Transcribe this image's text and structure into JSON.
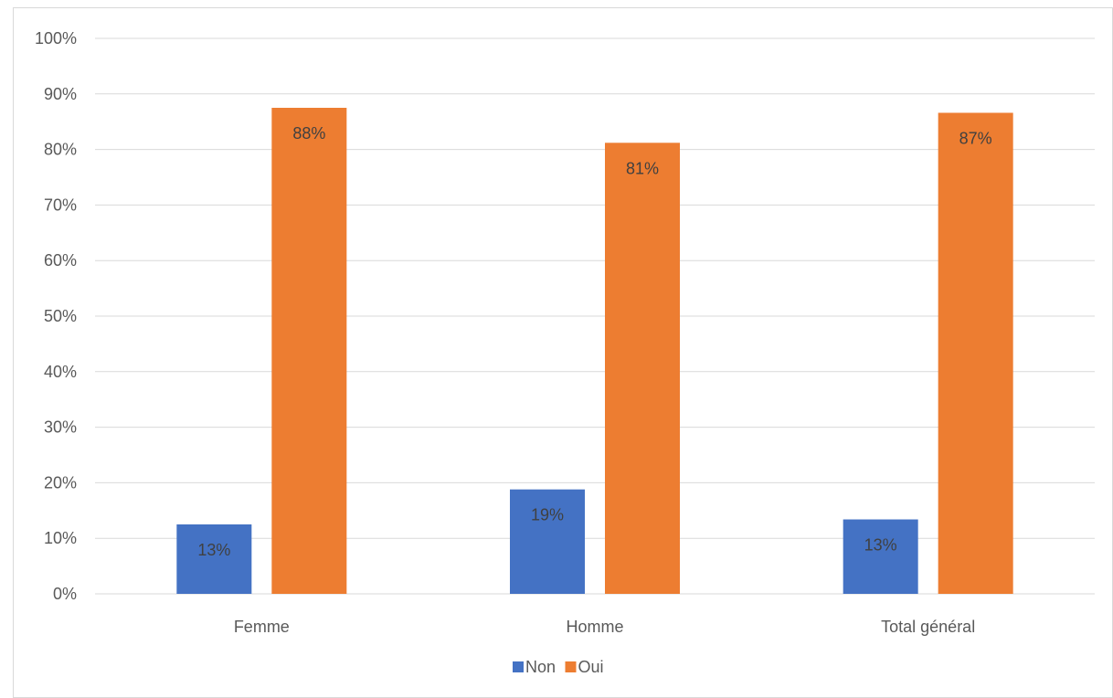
{
  "chart_data": {
    "type": "bar",
    "categories": [
      "Femme",
      "Homme",
      "Total général"
    ],
    "series": [
      {
        "name": "Non",
        "values": [
          12.5,
          18.8,
          13.4
        ],
        "labels": [
          "13%",
          "19%",
          "13%"
        ],
        "color": "#4472C4"
      },
      {
        "name": "Oui",
        "values": [
          87.5,
          81.2,
          86.6
        ],
        "labels": [
          "88%",
          "81%",
          "87%"
        ],
        "color": "#ED7D31"
      }
    ],
    "ylim": [
      0,
      100
    ],
    "yticks": [
      "0%",
      "10%",
      "20%",
      "30%",
      "40%",
      "50%",
      "60%",
      "70%",
      "80%",
      "90%",
      "100%"
    ],
    "ytick_values": [
      0,
      10,
      20,
      30,
      40,
      50,
      60,
      70,
      80,
      90,
      100
    ],
    "grid": true,
    "grid_color": "#d9d9d9",
    "legend_position": "bottom"
  }
}
